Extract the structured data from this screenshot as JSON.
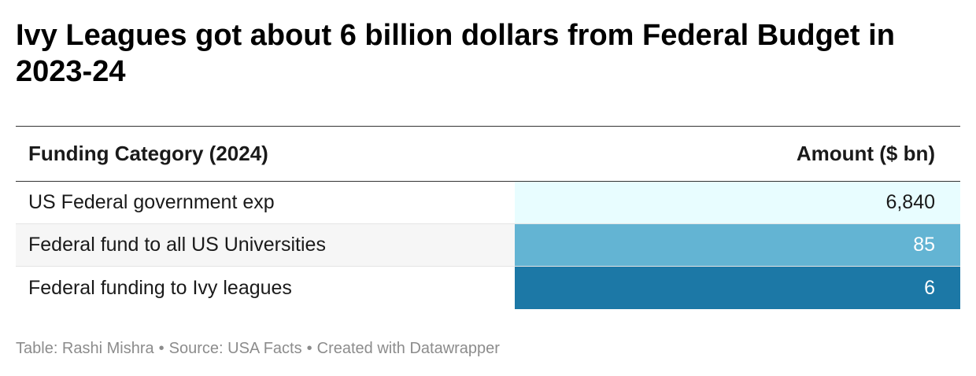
{
  "title": "Ivy Leagues got about 6 billion dollars from Federal Budget in 2023-24",
  "chart_data": {
    "type": "table",
    "columns": [
      "Funding Category (2024)",
      "Amount ($ bn)"
    ],
    "rows": [
      {
        "category": "US Federal government exp",
        "amount": 6840,
        "amount_label": "6,840",
        "bg": "#e8fdff",
        "fg": "#1a1a1a"
      },
      {
        "category": "Federal fund to all US Universities",
        "amount": 85,
        "amount_label": "85",
        "bg": "#63b4d3",
        "fg": "#ffffff"
      },
      {
        "category": "Federal funding to Ivy leagues",
        "amount": 6,
        "amount_label": "6",
        "bg": "#1c78a6",
        "fg": "#ffffff"
      }
    ]
  },
  "footer": {
    "table_by": "Table: Rashi Mishra",
    "source": "Source: USA Facts",
    "created_with": "Created with Datawrapper",
    "separator": "•"
  }
}
